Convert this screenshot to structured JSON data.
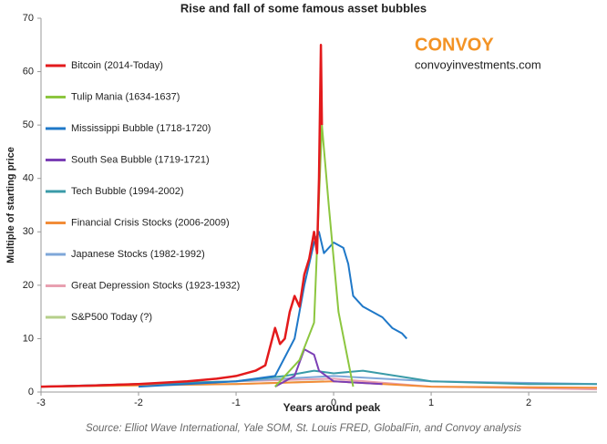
{
  "chart_data": {
    "type": "line",
    "title": "Rise and fall of some famous asset bubbles",
    "x_label": "Years around peak",
    "y_label": "Multiple of starting price",
    "brand": "CONVOY",
    "website": "convoyinvestments.com",
    "source": "Source: Elliot Wave International, Yale SOM, St. Louis FRED, GlobalFin, and Convoy analysis",
    "xlim": [
      -3,
      2.7
    ],
    "ylim": [
      0,
      70
    ],
    "xticks": [
      -3,
      -2,
      -1,
      0,
      1,
      2
    ],
    "yticks": [
      0,
      10,
      20,
      30,
      40,
      50,
      60,
      70
    ],
    "grid": false,
    "legend": "left",
    "series": [
      {
        "name": "Bitcoin (2014-Today)",
        "color": "#e31a1c",
        "x": [
          -3,
          -2.5,
          -2,
          -1.5,
          -1.2,
          -1,
          -0.8,
          -0.7,
          -0.6,
          -0.55,
          -0.5,
          -0.45,
          -0.4,
          -0.35,
          -0.3,
          -0.25,
          -0.2,
          -0.17,
          -0.15,
          -0.13,
          -0.12
        ],
        "values": [
          1,
          1.2,
          1.5,
          2,
          2.5,
          3,
          4,
          5,
          12,
          9,
          10,
          15,
          18,
          16,
          22,
          25,
          30,
          26,
          40,
          65,
          50
        ]
      },
      {
        "name": "Tulip Mania (1634-1637)",
        "color": "#8cc63f",
        "x": [
          -0.6,
          -0.5,
          -0.35,
          -0.2,
          -0.12,
          -0.05,
          0.05,
          0.2
        ],
        "values": [
          1,
          3,
          6,
          13,
          50,
          35,
          15,
          1
        ]
      },
      {
        "name": "Mississippi Bubble (1718-1720)",
        "color": "#1f78c8",
        "x": [
          -2,
          -1,
          -0.6,
          -0.4,
          -0.3,
          -0.2,
          -0.15,
          -0.1,
          0,
          0.1,
          0.15,
          0.2,
          0.3,
          0.4,
          0.5,
          0.6,
          0.7,
          0.75
        ],
        "values": [
          1,
          2,
          3,
          10,
          20,
          28,
          30,
          26,
          28,
          27,
          24,
          18,
          16,
          15,
          14,
          12,
          11,
          10
        ]
      },
      {
        "name": "South Sea Bubble (1719-1721)",
        "color": "#7b3fb5",
        "x": [
          -0.6,
          -0.4,
          -0.3,
          -0.2,
          -0.15,
          0,
          0.5
        ],
        "values": [
          1,
          3,
          8,
          7,
          4,
          2,
          1.5
        ]
      },
      {
        "name": "Tech Bubble (1994-2002)",
        "color": "#3a9ba8",
        "x": [
          -3,
          -2,
          -1,
          -0.5,
          -0.2,
          0,
          0.3,
          1,
          2,
          2.7
        ],
        "values": [
          1,
          1.5,
          2,
          3,
          4,
          3.5,
          4,
          2,
          1.5,
          1.5
        ]
      },
      {
        "name": "Financial Crisis Stocks (2006-2009)",
        "color": "#f28c38",
        "x": [
          -3,
          -1,
          0,
          1,
          2.7
        ],
        "values": [
          1,
          1.5,
          2,
          1,
          0.8
        ]
      },
      {
        "name": "Japanese Stocks (1982-1992)",
        "color": "#7fa7d9",
        "x": [
          -3,
          -1,
          0,
          1,
          2.7
        ],
        "values": [
          1,
          2,
          3,
          2,
          1.5
        ]
      },
      {
        "name": "Great Depression Stocks (1923-1932)",
        "color": "#e8a0b0",
        "x": [
          -3,
          -1,
          0,
          1,
          2.7
        ],
        "values": [
          1,
          2,
          2.5,
          1,
          0.5
        ]
      },
      {
        "name": "S&P500 Today (?)",
        "color": "#b5cf8a",
        "x": [
          -3,
          -1,
          -0.1
        ],
        "values": [
          1,
          1.5,
          2
        ]
      }
    ]
  }
}
